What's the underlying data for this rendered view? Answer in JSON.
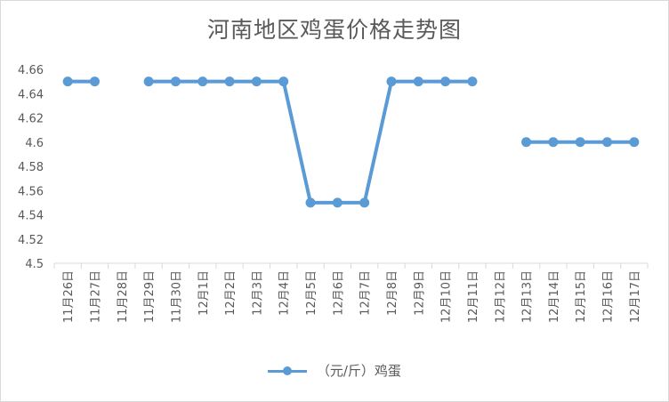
{
  "colors": {
    "series": "#5b9bd5",
    "axis": "#d9d9d9",
    "text": "#595959"
  },
  "chart_data": {
    "type": "line",
    "title": "河南地区鸡蛋价格走势图",
    "categories": [
      "11月26日",
      "11月27日",
      "11月28日",
      "11月29日",
      "11月30日",
      "12月1日",
      "12月2日",
      "12月3日",
      "12月4日",
      "12月5日",
      "12月6日",
      "12月7日",
      "12月8日",
      "12月9日",
      "12月10日",
      "12月11日",
      "12月12日",
      "12月13日",
      "12月14日",
      "12月15日",
      "12月16日",
      "12月17日"
    ],
    "series": [
      {
        "name": "（元/斤）鸡蛋",
        "values": [
          4.65,
          4.65,
          null,
          4.65,
          4.65,
          4.65,
          4.65,
          4.65,
          4.65,
          4.55,
          4.55,
          4.55,
          4.65,
          4.65,
          4.65,
          4.65,
          null,
          4.6,
          4.6,
          4.6,
          4.6,
          4.6
        ]
      }
    ],
    "yticks": [
      "4.5",
      "4.52",
      "4.54",
      "4.56",
      "4.58",
      "4.6",
      "4.62",
      "4.64",
      "4.66"
    ],
    "ylim": [
      4.5,
      4.66
    ],
    "grid": false,
    "legend": "bottom"
  }
}
